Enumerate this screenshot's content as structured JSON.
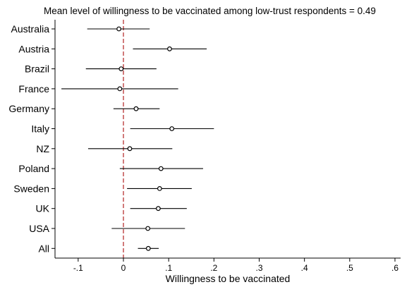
{
  "chart_data": {
    "type": "scatter",
    "title": "Mean level of willingness to be vaccinated among low-trust respondents = 0.49",
    "xlabel": "Willingness to be vaccinated",
    "ylabel": "",
    "xlim": [
      -0.15,
      0.62
    ],
    "xticks": [
      -0.1,
      0,
      0.1,
      0.2,
      0.3,
      0.4,
      0.5,
      0.6
    ],
    "xtick_labels": [
      "-.1",
      "0",
      ".1",
      ".2",
      ".3",
      ".4",
      ".5",
      ".6"
    ],
    "reference_line": {
      "x": 0,
      "style": "dashed",
      "color": "#b22222"
    },
    "grid": false,
    "categories": [
      "Australia",
      "Austria",
      "Brazil",
      "France",
      "Germany",
      "Italy",
      "NZ",
      "Poland",
      "Sweden",
      "UK",
      "USA",
      "All"
    ],
    "estimates": [
      -0.01,
      0.102,
      -0.005,
      -0.008,
      0.028,
      0.107,
      0.014,
      0.083,
      0.08,
      0.077,
      0.054,
      0.055
    ],
    "ci_low": [
      -0.08,
      0.021,
      -0.083,
      -0.137,
      -0.022,
      0.015,
      -0.078,
      -0.008,
      0.008,
      0.015,
      -0.026,
      0.032
    ],
    "ci_high": [
      0.058,
      0.184,
      0.073,
      0.121,
      0.08,
      0.2,
      0.108,
      0.176,
      0.151,
      0.14,
      0.136,
      0.078
    ]
  },
  "colors": {
    "marker_edge": "#000000",
    "marker_fill": "#ffffff",
    "ci_line": "#000000",
    "ref_line": "#b22222"
  }
}
